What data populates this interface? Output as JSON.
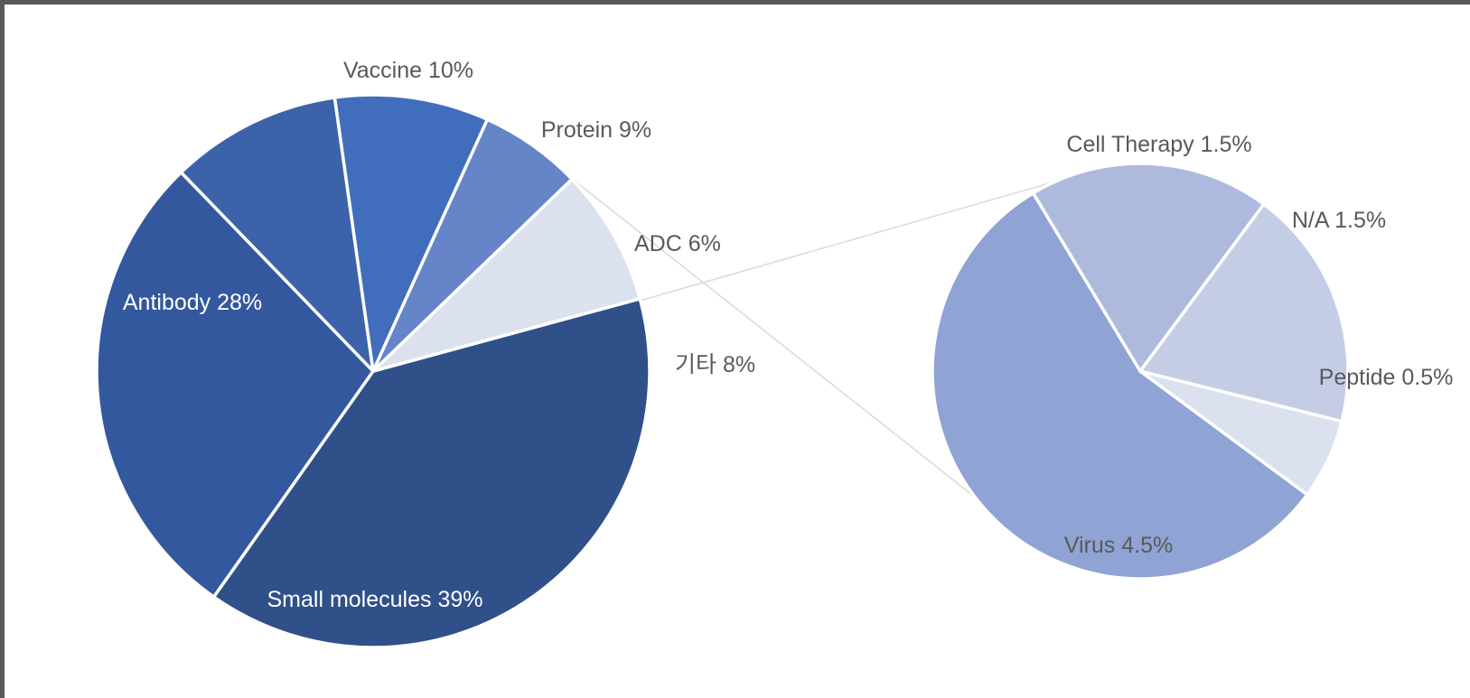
{
  "chart_data": {
    "type": "pie",
    "subtype": "pie-of-pie",
    "main": {
      "slices": [
        {
          "label": "Small molecules 39%",
          "value": 39,
          "color": "#2f5089",
          "label_color": "light"
        },
        {
          "label": "Antibody 28%",
          "value": 28,
          "color": "#33589e",
          "label_color": "light"
        },
        {
          "label": "Vaccine 10%",
          "value": 10,
          "color": "#3c63aa",
          "label_color": "dark"
        },
        {
          "label": "Protein 9%",
          "value": 9,
          "color": "#416ebc",
          "label_color": "dark"
        },
        {
          "label": "ADC 6%",
          "value": 6,
          "color": "#6684c8",
          "label_color": "dark"
        },
        {
          "label": "기타 8%",
          "value": 8,
          "color": "#dce1ef",
          "label_color": "dark"
        }
      ]
    },
    "secondary": {
      "slices": [
        {
          "label": "Virus 4.5%",
          "value": 4.5,
          "color": "#8fa3d4",
          "label_color": "dark"
        },
        {
          "label": "Cell Therapy 1.5%",
          "value": 1.5,
          "color": "#adbadd",
          "label_color": "dark"
        },
        {
          "label": "N/A 1.5%",
          "value": 1.5,
          "color": "#c5cde6",
          "label_color": "dark"
        },
        {
          "label": "Peptide 0.5%",
          "value": 0.5,
          "color": "#dce1ef",
          "label_color": "dark"
        }
      ]
    },
    "connector_color": "#d9d9d9"
  }
}
